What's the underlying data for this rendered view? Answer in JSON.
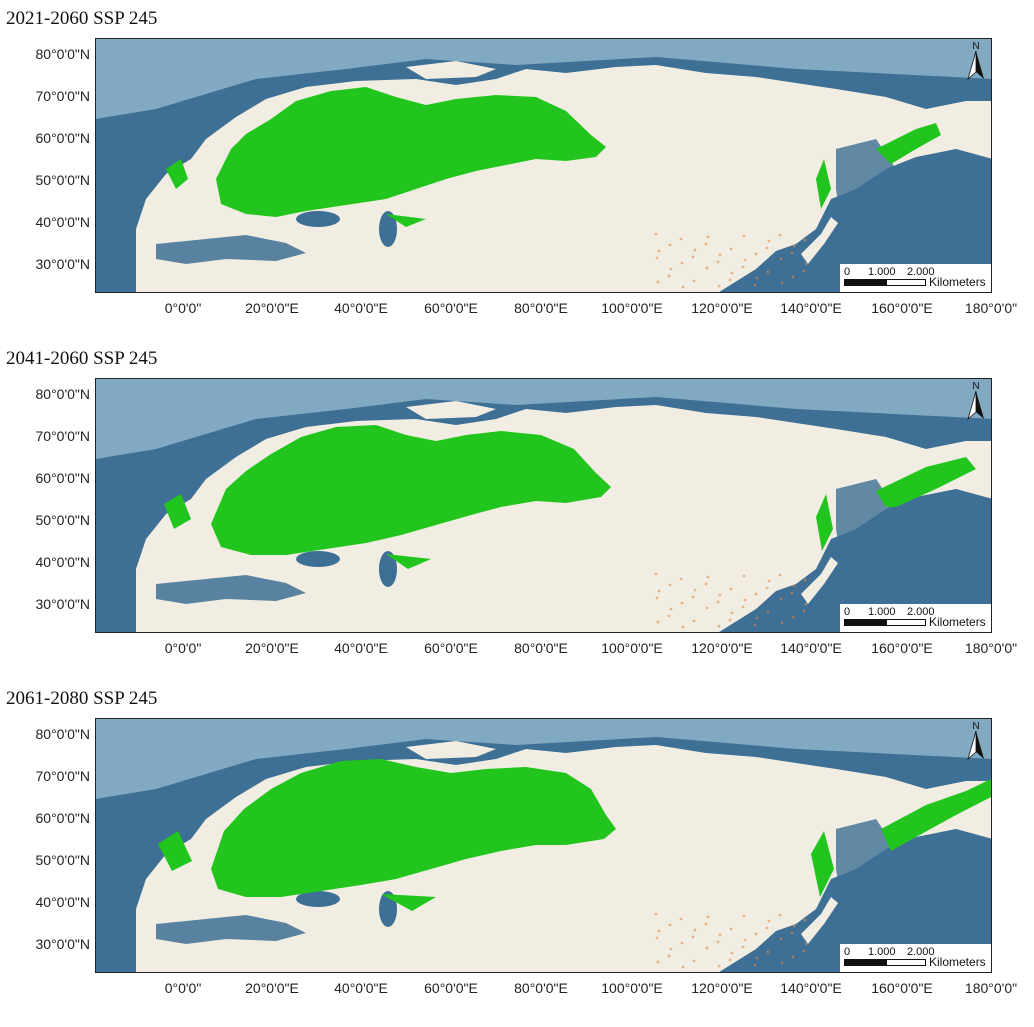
{
  "panels": [
    {
      "title": "2021-2060 SSP 245"
    },
    {
      "title": "2041-2060 SSP 245"
    },
    {
      "title": "2061-2080 SSP 245"
    }
  ],
  "lat_labels": [
    "80°0'0\"N",
    "70°0'0\"N",
    "60°0'0\"N",
    "50°0'0\"N",
    "40°0'0\"N",
    "30°0'0\"N"
  ],
  "lon_labels": [
    "0°0'0\"",
    "20°0'0\"E",
    "40°0'0\"E",
    "60°0'0\"E",
    "80°0'0\"E",
    "100°0'0\"E",
    "120°0'0\"E",
    "140°0'0\"E",
    "160°0'0\"E",
    "180°0'0\""
  ],
  "scalebar": {
    "ticks": [
      "0",
      "1.000",
      "2.000"
    ],
    "unit": "Kilometers"
  },
  "north_label": "N",
  "colors": {
    "ocean_deep": "#3e6f95",
    "ocean_shelf": "#9fc2d6",
    "land": "#f1ede2",
    "suitable_habitat": "#22c51e",
    "frame": "#222222"
  }
}
